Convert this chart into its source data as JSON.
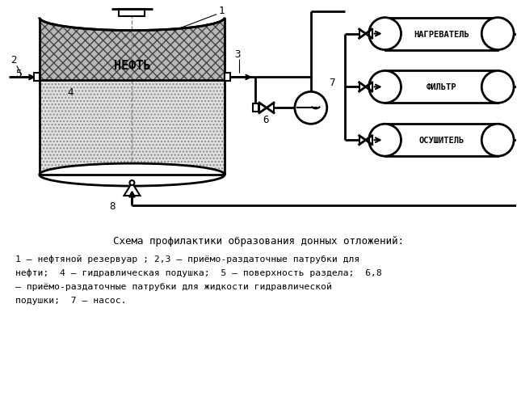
{
  "bg_color": "#ffffff",
  "line_color": "#000000",
  "caption_title": "Схема профилактики образования донных отложений:",
  "caption_lines": [
    "1 – нефтяной резервуар ; 2,3 – приёмо-раздаточные патрубки для",
    "нефти;  4 – гидравлическая подушка;  5 – поверхность раздела;  6,8",
    "– приёмо-раздаточные патрубки для жидкости гидравлической",
    "подушки;  7 – насос."
  ]
}
